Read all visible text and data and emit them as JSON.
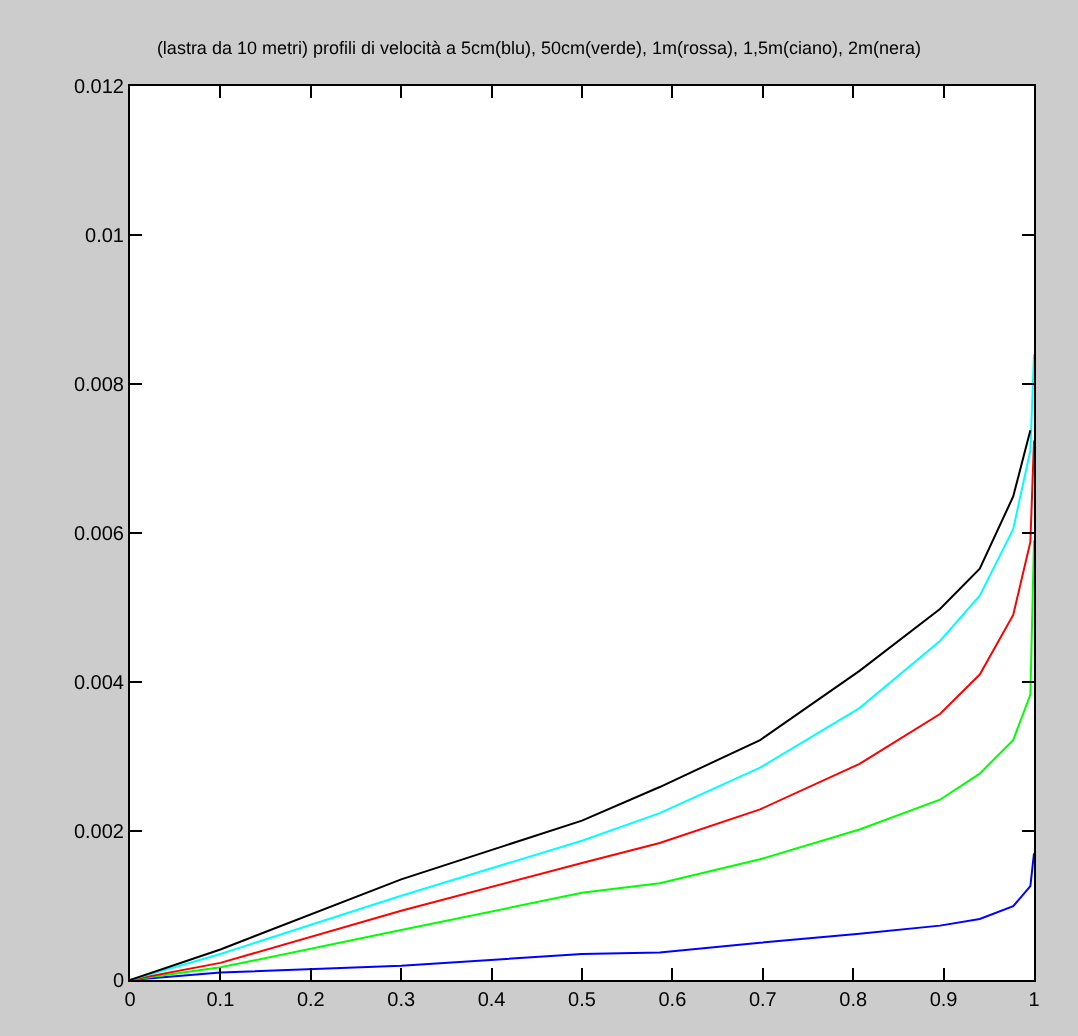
{
  "chart_data": {
    "type": "line",
    "title": "(lastra da 10 metri) profili di velocità a 5cm(blu), 50cm(verde), 1m(rossa), 1,5m(ciano), 2m(nera)",
    "x": [
      0,
      0.1,
      0.3,
      0.5,
      0.586,
      0.697,
      0.807,
      0.896,
      0.94,
      0.977,
      0.996,
      1
    ],
    "series": [
      {
        "color": "#0000ff",
        "values": [
          0,
          0.0001,
          0.00019,
          0.00035,
          0.00037,
          0.0005,
          0.00062,
          0.00073,
          0.00082,
          0.00099,
          0.00126,
          0.0017
        ]
      },
      {
        "color": "#00ff00",
        "values": [
          0,
          0.00017,
          0.00067,
          0.00117,
          0.0013,
          0.00162,
          0.00202,
          0.00242,
          0.00277,
          0.00322,
          0.00383,
          0.0059
        ]
      },
      {
        "color": "#ff0000",
        "values": [
          0,
          0.00023,
          0.00093,
          0.00157,
          0.00184,
          0.00229,
          0.0029,
          0.00357,
          0.0041,
          0.0049,
          0.00588,
          0.00724
        ]
      },
      {
        "color": "#00ffff",
        "values": [
          0,
          0.00035,
          0.00113,
          0.00187,
          0.00224,
          0.00285,
          0.00365,
          0.00455,
          0.00516,
          0.00605,
          0.00711,
          0.0084
        ]
      },
      {
        "color": "#000000",
        "values": [
          0,
          0.00041,
          0.00135,
          0.00214,
          0.00259,
          0.00322,
          0.00415,
          0.00498,
          0.00552,
          0.00649,
          0.00738,
          null
        ]
      }
    ],
    "xlim": [
      0,
      1
    ],
    "xticks": [
      0,
      0.1,
      0.2,
      0.3,
      0.4,
      0.5,
      0.6,
      0.7,
      0.8,
      0.9,
      1
    ],
    "ylim": [
      0,
      0.012
    ],
    "yticks": [
      0,
      0.002,
      0.004,
      0.006,
      0.008,
      0.01,
      0.012
    ],
    "marker": "none",
    "line_style": "solid"
  }
}
